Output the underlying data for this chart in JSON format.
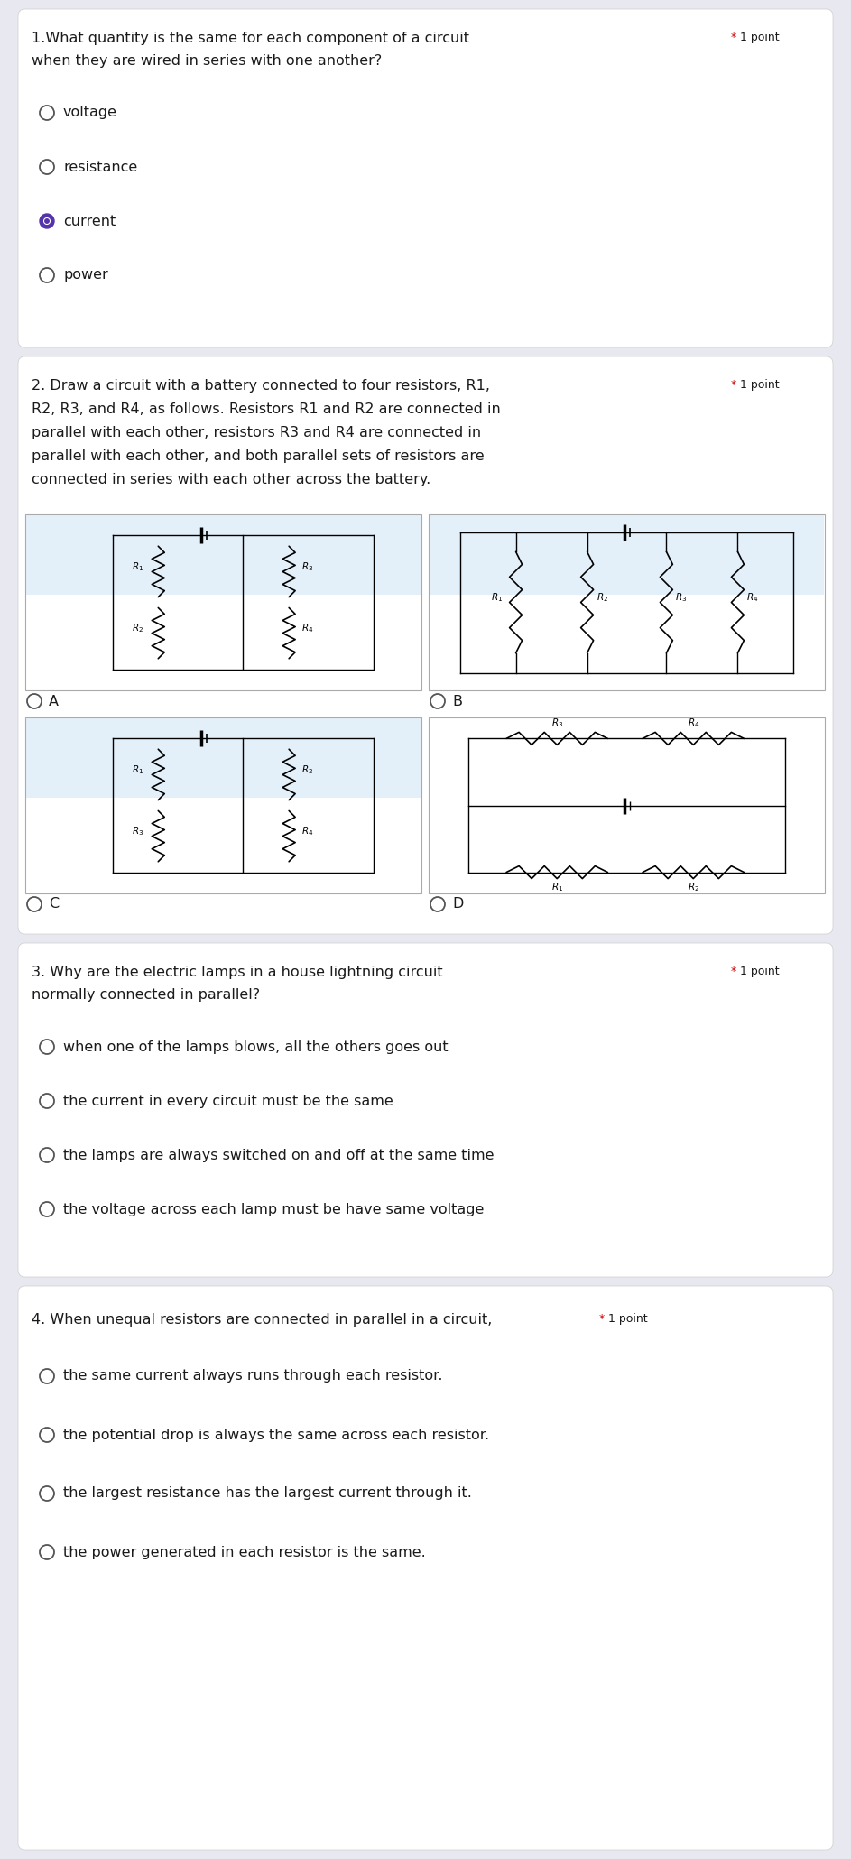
{
  "bg_color": "#e8e8f0",
  "card_color": "#ffffff",
  "q1_text_line1": "1.What quantity is the same for each component of a circuit",
  "q1_text_line2": "when they are wired in series with one another?",
  "q1_options": [
    "voltage",
    "resistance",
    "current",
    "power"
  ],
  "q1_selected": 2,
  "q2_lines": [
    "2. Draw a circuit with a battery connected to four resistors, R1,",
    "R2, R3, and R4, as follows. Resistors R1 and R2 are connected in",
    "parallel with each other, resistors R3 and R4 are connected in",
    "parallel with each other, and both parallel sets of resistors are",
    "connected in series with each other across the battery."
  ],
  "q3_text_line1": "3. Why are the electric lamps in a house lightning circuit",
  "q3_text_line2": "normally connected in parallel?",
  "q3_options": [
    "when one of the lamps blows, all the others goes out",
    "the current in every circuit must be the same",
    "the lamps are always switched on and off at the same time",
    "the voltage across each lamp must be have same voltage"
  ],
  "q4_text": "4. When unequal resistors are connected in parallel in a circuit,",
  "q4_options": [
    "the same current always runs through each resistor.",
    "the potential drop is always the same across each resistor.",
    "the largest resistance has the largest current through it.",
    "the power generated in each resistor is the same."
  ],
  "text_color": "#1a1a1a",
  "red_star_color": "#cc0000",
  "option_circle_color": "#555555",
  "selected_fill": "#5533aa",
  "font_size_q": 11.5,
  "font_size_opt": 11.5,
  "font_size_point": 9
}
